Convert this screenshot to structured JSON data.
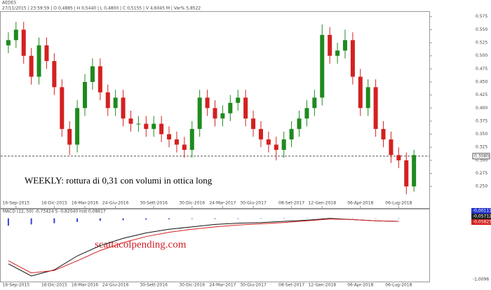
{
  "header": {
    "symbol": "AEDES",
    "info": "27/11/2015 | 23:59:59 | O 0,4885 | H 0,5440 | L 0,4800 | C 0,5155 | V 4,6045 M | Var% 5,8522"
  },
  "chart_data": [
    {
      "type": "candlestick",
      "up_color": "#1f8a1f",
      "down_color": "#d42020",
      "open": [
        0.52,
        0.53,
        0.55,
        0.5,
        0.46,
        0.52,
        0.49,
        0.44,
        0.36,
        0.33,
        0.4,
        0.45,
        0.48,
        0.43,
        0.4,
        0.42,
        0.38,
        0.37,
        0.37,
        0.36,
        0.37,
        0.35,
        0.34,
        0.33,
        0.32,
        0.36,
        0.42,
        0.4,
        0.38,
        0.39,
        0.41,
        0.42,
        0.38,
        0.36,
        0.34,
        0.33,
        0.32,
        0.34,
        0.36,
        0.38,
        0.4,
        0.42,
        0.54,
        0.5,
        0.51,
        0.53,
        0.46,
        0.4,
        0.44,
        0.36,
        0.34,
        0.31,
        0.3,
        0.25
      ],
      "high": [
        0.545,
        0.565,
        0.565,
        0.515,
        0.535,
        0.535,
        0.505,
        0.455,
        0.375,
        0.415,
        0.465,
        0.495,
        0.495,
        0.445,
        0.435,
        0.435,
        0.395,
        0.385,
        0.385,
        0.385,
        0.385,
        0.365,
        0.355,
        0.345,
        0.375,
        0.435,
        0.435,
        0.415,
        0.405,
        0.425,
        0.435,
        0.435,
        0.395,
        0.375,
        0.355,
        0.345,
        0.355,
        0.375,
        0.395,
        0.415,
        0.435,
        0.56,
        0.555,
        0.525,
        0.55,
        0.545,
        0.475,
        0.455,
        0.455,
        0.375,
        0.355,
        0.325,
        0.315,
        0.32
      ],
      "low": [
        0.505,
        0.515,
        0.485,
        0.445,
        0.445,
        0.475,
        0.425,
        0.345,
        0.31,
        0.315,
        0.385,
        0.435,
        0.415,
        0.385,
        0.385,
        0.365,
        0.355,
        0.355,
        0.345,
        0.345,
        0.335,
        0.325,
        0.315,
        0.305,
        0.305,
        0.345,
        0.385,
        0.365,
        0.365,
        0.375,
        0.395,
        0.365,
        0.345,
        0.325,
        0.315,
        0.3,
        0.305,
        0.325,
        0.345,
        0.365,
        0.385,
        0.405,
        0.485,
        0.485,
        0.495,
        0.445,
        0.385,
        0.385,
        0.345,
        0.325,
        0.295,
        0.285,
        0.235,
        0.24
      ],
      "close": [
        0.53,
        0.55,
        0.5,
        0.46,
        0.52,
        0.49,
        0.44,
        0.36,
        0.33,
        0.4,
        0.45,
        0.48,
        0.43,
        0.4,
        0.42,
        0.38,
        0.37,
        0.37,
        0.36,
        0.37,
        0.35,
        0.34,
        0.33,
        0.32,
        0.36,
        0.42,
        0.4,
        0.38,
        0.39,
        0.41,
        0.42,
        0.38,
        0.36,
        0.34,
        0.33,
        0.32,
        0.34,
        0.36,
        0.38,
        0.4,
        0.42,
        0.54,
        0.5,
        0.51,
        0.53,
        0.46,
        0.4,
        0.44,
        0.36,
        0.34,
        0.31,
        0.3,
        0.25,
        0.31
      ],
      "xlim": [
        -1,
        55
      ],
      "xticks": [
        {
          "value": 1,
          "label": "16-Sep-2015"
        },
        {
          "value": 6,
          "label": "16-Dic-2015"
        },
        {
          "value": 10,
          "label": "16-Mar-2016"
        },
        {
          "value": 14,
          "label": "24-Giu-2016"
        },
        {
          "value": 19,
          "label": "30-Sett-2016"
        },
        {
          "value": 24,
          "label": "30-Dic-2016"
        },
        {
          "value": 28,
          "label": "24-Mar-2017"
        },
        {
          "value": 32,
          "label": "30-Giu-2017"
        },
        {
          "value": 37,
          "label": "08-Set-2017"
        },
        {
          "value": 41,
          "label": "12-Gen-2018"
        },
        {
          "value": 46,
          "label": "06-Apr-2018"
        },
        {
          "value": 51,
          "label": "06-Lug-2018"
        }
      ],
      "ylim": [
        0.21,
        0.58
      ],
      "yticks": [
        {
          "value": 0.575,
          "label": "0.575"
        },
        {
          "value": 0.55,
          "label": "0.550"
        },
        {
          "value": 0.525,
          "label": "0.525"
        },
        {
          "value": 0.5,
          "label": "0.500"
        },
        {
          "value": 0.475,
          "label": "0.475"
        },
        {
          "value": 0.45,
          "label": "0.450"
        },
        {
          "value": 0.425,
          "label": "0.425"
        },
        {
          "value": 0.4,
          "label": "0.400"
        },
        {
          "value": 0.375,
          "label": "0.375"
        },
        {
          "value": 0.35,
          "label": "0.350"
        },
        {
          "value": 0.325,
          "label": "0.325"
        },
        {
          "value": 0.3,
          "label": "0.300"
        },
        {
          "value": 0.275,
          "label": "0.275"
        },
        {
          "value": 0.25,
          "label": "0.250"
        }
      ],
      "price_line": {
        "value": 0.308,
        "label": "0.3080"
      },
      "annotation": "WEEKLY: rottura di 0,31 con volumi in ottica long"
    },
    {
      "type": "line",
      "title": "MACD   (12, 50)   -0,73424   S   -0,82040   hist   0,08617",
      "x": [
        0,
        3,
        6,
        9,
        12,
        15,
        18,
        21,
        24,
        27,
        30,
        33,
        36,
        39,
        42,
        45,
        48,
        51
      ],
      "xlim": [
        -1,
        55
      ],
      "series": [
        {
          "color": "#111111",
          "values": [
            -0.75,
            -0.95,
            -0.85,
            -0.62,
            -0.45,
            -0.33,
            -0.24,
            -0.18,
            -0.14,
            -0.1,
            -0.08,
            -0.07,
            -0.05,
            -0.03,
            0.0,
            -0.02,
            -0.04,
            -0.05
          ]
        },
        {
          "color": "#d42020",
          "values": [
            -0.7,
            -0.9,
            -0.86,
            -0.7,
            -0.53,
            -0.4,
            -0.3,
            -0.23,
            -0.18,
            -0.14,
            -0.11,
            -0.09,
            -0.07,
            -0.04,
            -0.01,
            -0.02,
            -0.04,
            -0.05
          ]
        }
      ],
      "histogram": {
        "color": "#3344cc",
        "values": [
          -0.12,
          -0.1,
          -0.08,
          -0.06,
          -0.04,
          -0.03,
          -0.02,
          -0.015,
          -0.01,
          -0.01,
          -0.008,
          -0.006,
          -0.005,
          -0.004,
          -0.003,
          -0.003,
          -0.003,
          -0.003
        ]
      },
      "ylim": [
        -1.02,
        0.02
      ],
      "yticks": [
        {
          "value": -1.0096,
          "label": "-1,0096"
        }
      ],
      "last_labels": [
        {
          "label": "-0,00111",
          "color": "#2233cc"
        },
        {
          "label": "-0,05712",
          "color": "#222222"
        },
        {
          "label": "-0,05823",
          "color": "#d42020"
        }
      ],
      "annotation": "scattacolpending.com"
    }
  ]
}
